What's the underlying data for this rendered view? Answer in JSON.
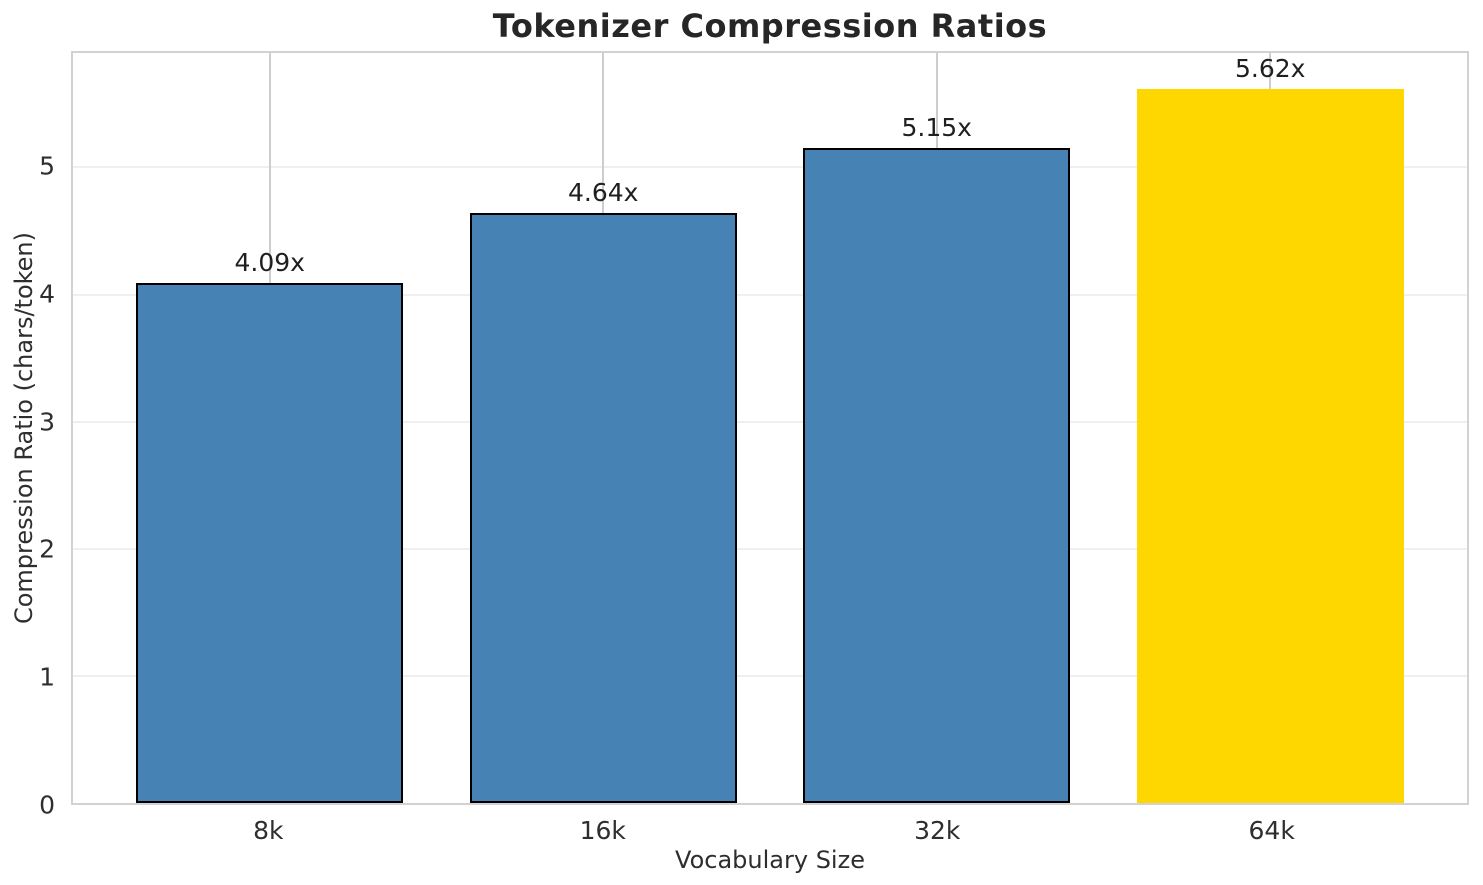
{
  "chart_data": {
    "type": "bar",
    "title": "Tokenizer Compression Ratios",
    "xlabel": "Vocabulary Size",
    "ylabel": "Compression Ratio (chars/token)",
    "categories": [
      "8k",
      "16k",
      "32k",
      "64k"
    ],
    "values": [
      4.09,
      4.64,
      5.15,
      5.62
    ],
    "bar_labels": [
      "4.09x",
      "4.64x",
      "5.15x",
      "5.62x"
    ],
    "bar_colors": [
      "#4682B4",
      "#4682B4",
      "#4682B4",
      "#FFD700"
    ],
    "bar_edge_colors": [
      "#000000",
      "#000000",
      "#000000",
      null
    ],
    "highlight_color": "#FFD700",
    "base_color": "#4682B4",
    "yticks": [
      0,
      1,
      2,
      3,
      4,
      5
    ],
    "ylim": [
      0,
      5.9
    ],
    "grid": true,
    "legend_position": "none"
  }
}
